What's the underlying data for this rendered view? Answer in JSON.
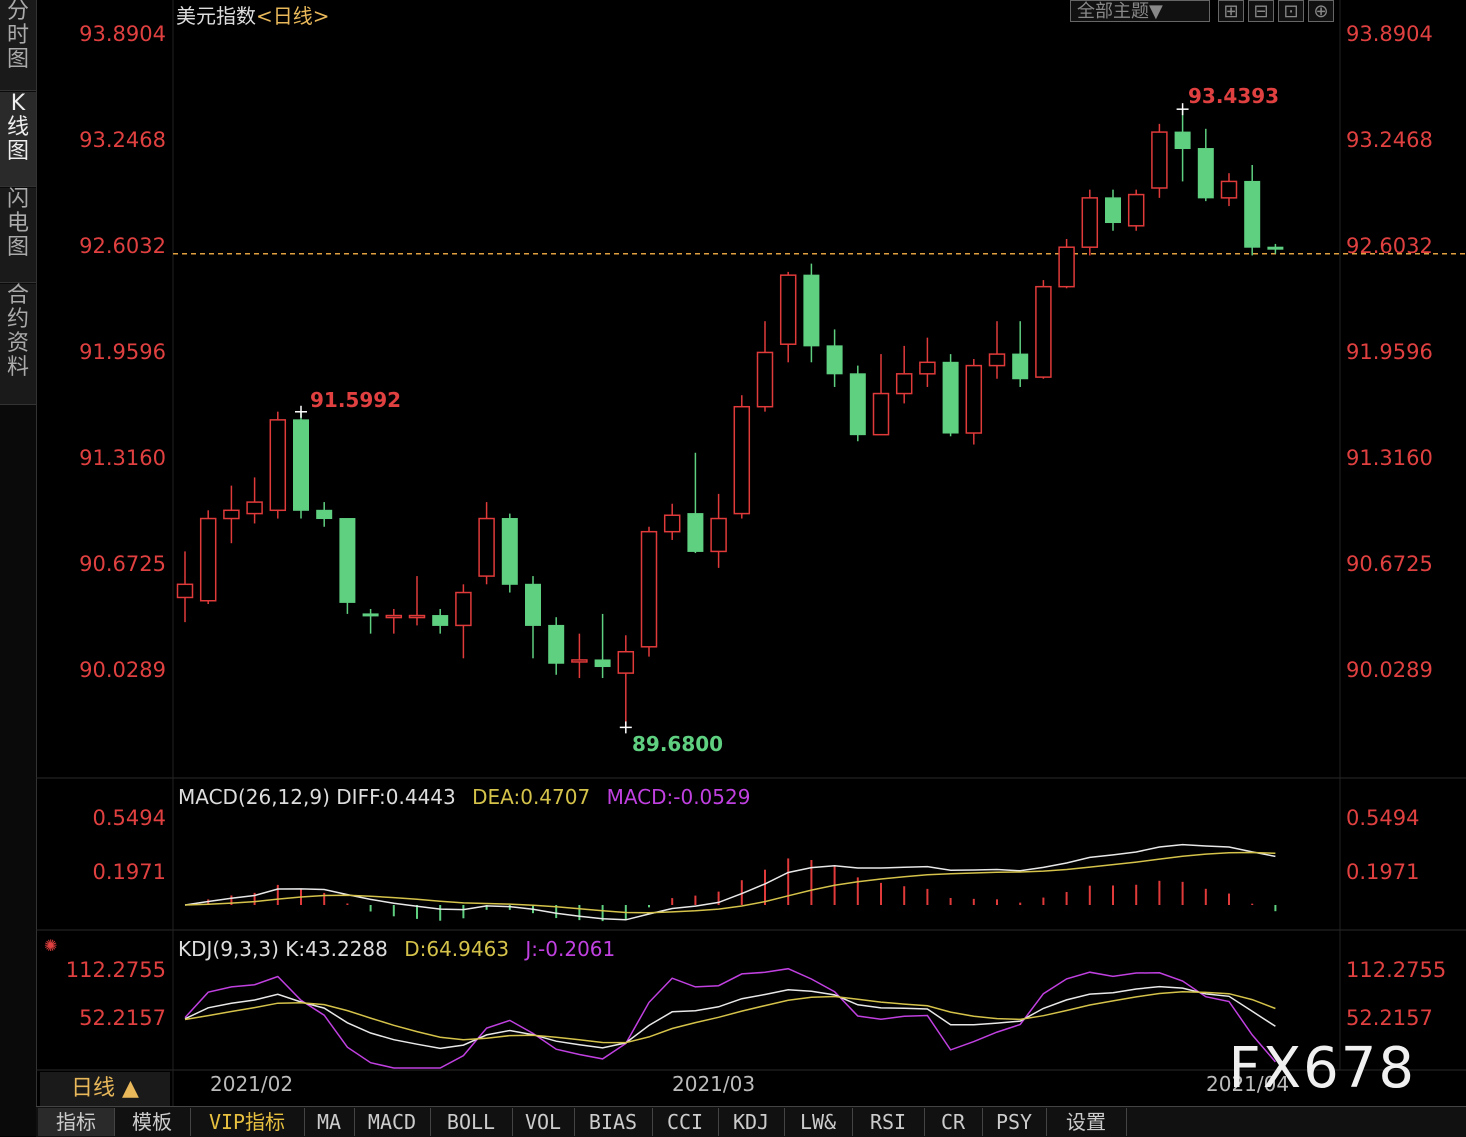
{
  "side_tabs": [
    {
      "label": "分时图",
      "active": false
    },
    {
      "label": "K线图",
      "active": true
    },
    {
      "label": "闪电图",
      "active": false
    },
    {
      "label": "合约资料",
      "active": false
    }
  ],
  "header": {
    "title": "美元指数",
    "subtitle": "<日线>",
    "theme_button": "全部主题▼"
  },
  "price_axis": [
    "93.8904",
    "93.2468",
    "92.6032",
    "91.9596",
    "91.3160",
    "90.6725",
    "90.0289"
  ],
  "current_price_label": "92.6032",
  "annotations": {
    "high": "93.4393",
    "low": "89.6800",
    "local_high": "91.5992"
  },
  "macd": {
    "title": "MACD(26,12,9)",
    "diff": "DIFF:0.4443",
    "dea": "DEA:0.4707",
    "macd": "MACD:-0.0529",
    "axis": [
      "0.5494",
      "0.1971"
    ]
  },
  "kdj": {
    "title": "KDJ(9,3,3)",
    "k": "K:43.2288",
    "d": "D:64.9463",
    "j": "J:-0.2061",
    "axis": [
      "112.2755",
      "52.2157"
    ]
  },
  "dates": [
    "2021/02",
    "2021/03",
    "2021/04"
  ],
  "period_label": "日线 ▲",
  "bottom_tabs": [
    "指标",
    "模板",
    "VIP指标",
    "MA",
    "MACD",
    "BOLL",
    "VOL",
    "BIAS",
    "CCI",
    "KDJ",
    "LW&",
    "RSI",
    "CR",
    "PSY",
    "设置"
  ],
  "watermark": "FX678",
  "colors": {
    "up": "#e03a3a",
    "down": "#5fcf80",
    "dea": "#d4c24a",
    "macd_hist": "#c040e0",
    "dashed": "#e0a040"
  },
  "chart_data": {
    "type": "candlestick",
    "ohlc": [
      [
        90.47,
        90.55,
        90.75,
        90.32
      ],
      [
        90.45,
        90.95,
        91.0,
        90.43
      ],
      [
        90.95,
        91.0,
        91.15,
        90.8
      ],
      [
        90.98,
        91.05,
        91.2,
        90.92
      ],
      [
        91.0,
        91.55,
        91.6,
        90.95
      ],
      [
        91.55,
        91.0,
        91.6,
        90.95
      ],
      [
        91.0,
        90.95,
        91.05,
        90.9
      ],
      [
        90.95,
        90.44,
        90.95,
        90.37
      ],
      [
        90.37,
        90.36,
        90.4,
        90.25
      ],
      [
        90.36,
        90.36,
        90.4,
        90.25
      ],
      [
        90.35,
        90.36,
        90.6,
        90.3
      ],
      [
        90.36,
        90.3,
        90.4,
        90.25
      ],
      [
        90.3,
        90.5,
        90.55,
        90.1
      ],
      [
        90.6,
        90.95,
        91.05,
        90.55
      ],
      [
        90.95,
        90.55,
        90.98,
        90.5
      ],
      [
        90.55,
        90.3,
        90.6,
        90.1
      ],
      [
        90.3,
        90.07,
        90.35,
        90.0
      ],
      [
        90.09,
        90.09,
        90.25,
        89.98
      ],
      [
        90.09,
        90.05,
        90.37,
        89.98
      ],
      [
        90.01,
        90.14,
        90.24,
        89.68
      ],
      [
        90.17,
        90.87,
        90.9,
        90.11
      ],
      [
        90.87,
        90.97,
        91.04,
        90.82
      ],
      [
        90.98,
        90.75,
        91.35,
        90.74
      ],
      [
        90.75,
        90.95,
        91.1,
        90.65
      ],
      [
        90.98,
        91.63,
        91.7,
        90.95
      ],
      [
        91.63,
        91.96,
        92.15,
        91.6
      ],
      [
        92.01,
        92.43,
        92.45,
        91.9
      ],
      [
        92.43,
        92.0,
        92.5,
        91.9
      ],
      [
        92.0,
        91.83,
        92.1,
        91.75
      ],
      [
        91.83,
        91.46,
        91.88,
        91.42
      ],
      [
        91.46,
        91.71,
        91.95,
        91.46
      ],
      [
        91.71,
        91.83,
        92.0,
        91.65
      ],
      [
        91.83,
        91.9,
        92.05,
        91.75
      ],
      [
        91.9,
        91.47,
        91.95,
        91.45
      ],
      [
        91.47,
        91.88,
        91.92,
        91.4
      ],
      [
        91.88,
        91.95,
        92.15,
        91.8
      ],
      [
        91.95,
        91.8,
        92.15,
        91.75
      ],
      [
        91.81,
        92.36,
        92.4,
        91.8
      ],
      [
        92.36,
        92.6,
        92.65,
        92.35
      ],
      [
        92.6,
        92.9,
        92.95,
        92.55
      ],
      [
        92.9,
        92.75,
        92.95,
        92.7
      ],
      [
        92.73,
        92.92,
        92.95,
        92.7
      ],
      [
        92.96,
        93.3,
        93.35,
        92.9
      ],
      [
        93.3,
        93.2,
        93.44,
        93.0
      ],
      [
        93.2,
        92.9,
        93.32,
        92.88
      ],
      [
        92.9,
        93.0,
        93.05,
        92.85
      ],
      [
        93.0,
        92.6,
        93.1,
        92.55
      ],
      [
        92.6,
        92.59,
        92.62,
        92.56
      ]
    ]
  }
}
